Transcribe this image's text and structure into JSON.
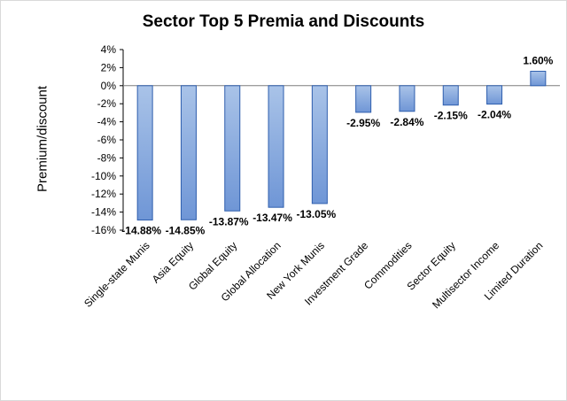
{
  "chart_data": {
    "type": "bar",
    "title": "Sector Top 5 Premia and Discounts",
    "xlabel": "",
    "ylabel": "Premium/discount",
    "ylim": [
      -16,
      4
    ],
    "yticks": [
      "4%",
      "2%",
      "0%",
      "-2%",
      "-4%",
      "-6%",
      "-8%",
      "-10%",
      "-12%",
      "-14%",
      "-16%"
    ],
    "ytick_values": [
      4,
      2,
      0,
      -2,
      -4,
      -6,
      -8,
      -10,
      -12,
      -14,
      -16
    ],
    "categories": [
      "Single-state Munis",
      "Asia Equity",
      "Global Equity",
      "Global Allocation",
      "New York Munis",
      "Investment Grade",
      "Commodities",
      "Sector Equity",
      "Multisector Income",
      "Limited Duration"
    ],
    "values": [
      -14.88,
      -14.85,
      -13.87,
      -13.47,
      -13.05,
      -2.95,
      -2.84,
      -2.15,
      -2.04,
      1.6
    ],
    "data_labels": [
      "-14.88%",
      "-14.85%",
      "-13.87%",
      "-13.47%",
      "-13.05%",
      "-2.95%",
      "-2.84%",
      "-2.15%",
      "-2.04%",
      "1.60%"
    ],
    "colors": {
      "bar_fill_top": "#a9c3e8",
      "bar_fill_bottom": "#6f96d6",
      "bar_stroke": "#2f5fae",
      "axis": "#000000"
    },
    "grid": false,
    "legend": "none"
  }
}
